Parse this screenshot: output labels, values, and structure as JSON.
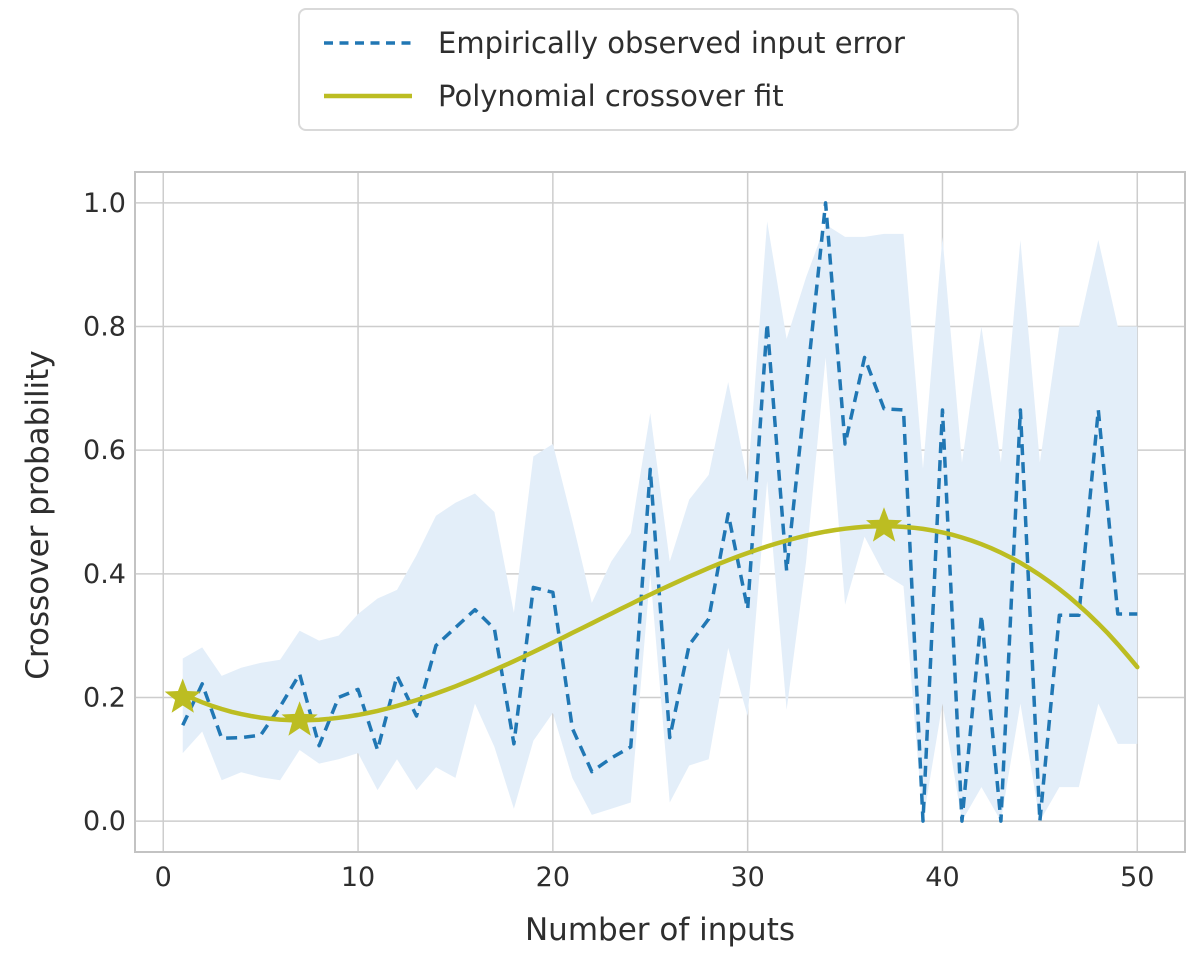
{
  "figure": {
    "background": "#ffffff",
    "text_color": "#2e2e2e",
    "grid_color": "#cdcdcd",
    "spine_color": "#c3c3c3",
    "band_color": "#e3eef9"
  },
  "legend": {
    "items": [
      {
        "label": "Empirically observed input error",
        "color": "#2077b4",
        "style": "dashed"
      },
      {
        "label": "Polynomial crossover fit",
        "color": "#bcbd22",
        "style": "solid"
      }
    ]
  },
  "axes": {
    "xlabel": "Number of inputs",
    "ylabel": "Crossover probability",
    "xlim": [
      -1.45,
      52.45
    ],
    "ylim": [
      -0.05,
      1.05
    ],
    "x_ticks": [
      {
        "label": "0",
        "value": 0
      },
      {
        "label": "10",
        "value": 10
      },
      {
        "label": "20",
        "value": 20
      },
      {
        "label": "30",
        "value": 30
      },
      {
        "label": "40",
        "value": 40
      },
      {
        "label": "50",
        "value": 50
      }
    ],
    "y_ticks": [
      {
        "label": "0.0",
        "value": 0.0
      },
      {
        "label": "0.2",
        "value": 0.2
      },
      {
        "label": "0.4",
        "value": 0.4
      },
      {
        "label": "0.6",
        "value": 0.6
      },
      {
        "label": "0.8",
        "value": 0.8
      },
      {
        "label": "1.0",
        "value": 1.0
      }
    ]
  },
  "chart_data": {
    "type": "line",
    "title": "",
    "xlabel": "Number of inputs",
    "ylabel": "Crossover probability",
    "x_range": [
      1,
      50
    ],
    "grid": true,
    "legend_position": "upper center, above axes",
    "series": [
      {
        "name": "Empirically observed input error",
        "color": "#2077b4",
        "style": "dashed",
        "x": [
          1,
          2,
          3,
          4,
          5,
          6,
          7,
          8,
          9,
          10,
          11,
          12,
          13,
          14,
          15,
          16,
          17,
          18,
          19,
          20,
          21,
          22,
          23,
          24,
          25,
          26,
          27,
          28,
          29,
          30,
          31,
          32,
          33,
          34,
          35,
          36,
          37,
          38,
          39,
          40,
          41,
          42,
          43,
          44,
          45,
          46,
          47,
          48,
          49,
          50
        ],
        "y": [
          0.155,
          0.222,
          0.134,
          0.135,
          0.139,
          0.185,
          0.238,
          0.122,
          0.2,
          0.213,
          0.115,
          0.235,
          0.17,
          0.284,
          0.313,
          0.342,
          0.311,
          0.125,
          0.378,
          0.37,
          0.15,
          0.08,
          0.102,
          0.12,
          0.569,
          0.135,
          0.285,
          0.327,
          0.497,
          0.343,
          0.805,
          0.405,
          0.7,
          1.0,
          0.61,
          0.75,
          0.667,
          0.665,
          0.0,
          0.665,
          0.0,
          0.333,
          0.0,
          0.665,
          0.0,
          0.333,
          0.333,
          0.665,
          0.335,
          0.335
        ],
        "band_upper": [
          0.263,
          0.281,
          0.235,
          0.248,
          0.256,
          0.261,
          0.308,
          0.292,
          0.3,
          0.335,
          0.36,
          0.374,
          0.43,
          0.494,
          0.515,
          0.53,
          0.5,
          0.337,
          0.59,
          0.61,
          0.485,
          0.353,
          0.42,
          0.466,
          0.66,
          0.42,
          0.52,
          0.56,
          0.71,
          0.55,
          0.97,
          0.78,
          0.88,
          0.965,
          0.945,
          0.945,
          0.95,
          0.95,
          0.57,
          0.945,
          0.58,
          0.8,
          0.58,
          0.94,
          0.58,
          0.8,
          0.8,
          0.94,
          0.8,
          0.8
        ],
        "band_lower": [
          0.11,
          0.145,
          0.066,
          0.079,
          0.071,
          0.066,
          0.115,
          0.093,
          0.1,
          0.11,
          0.05,
          0.1,
          0.05,
          0.087,
          0.07,
          0.19,
          0.12,
          0.02,
          0.13,
          0.175,
          0.07,
          0.01,
          0.02,
          0.03,
          0.4,
          0.03,
          0.09,
          0.1,
          0.28,
          0.17,
          0.55,
          0.18,
          0.42,
          0.75,
          0.35,
          0.46,
          0.4,
          0.38,
          0.0,
          0.19,
          0.0,
          0.055,
          0.0,
          0.19,
          0.0,
          0.055,
          0.055,
          0.19,
          0.125,
          0.125
        ]
      },
      {
        "name": "Polynomial crossover fit",
        "color": "#bcbd22",
        "style": "solid",
        "poly_coeffs": {
          "a0": 0.2223,
          "a1": -0.0180724,
          "a2": 0.0015351,
          "a3": -2.3259e-05
        },
        "sample_range": [
          1,
          50
        ],
        "stars": [
          [
            1,
            0.2
          ],
          [
            7,
            0.163
          ],
          [
            37,
            0.477
          ]
        ],
        "marker": "star"
      }
    ]
  }
}
